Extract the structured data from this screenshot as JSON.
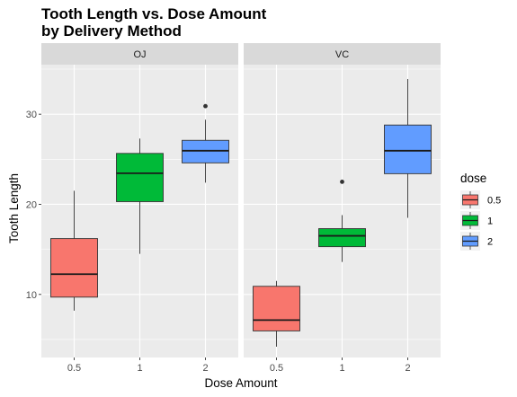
{
  "chart_data": {
    "type": "boxplot",
    "title_line1": "Tooth Length vs. Dose Amount",
    "title_line2": "by Delivery Method",
    "xlabel": "Dose Amount",
    "ylabel": "Tooth Length",
    "categories": [
      "0.5",
      "1",
      "2"
    ],
    "y_ticks": [
      10,
      20,
      30
    ],
    "ylim": [
      3,
      35.5
    ],
    "grid": true,
    "legend": {
      "title": "dose",
      "position": "right",
      "entries": [
        {
          "label": "0.5",
          "color": "#F8766D"
        },
        {
          "label": "1",
          "color": "#00BA38"
        },
        {
          "label": "2",
          "color": "#619CFF"
        }
      ]
    },
    "panels": [
      {
        "label": "OJ",
        "boxes": [
          {
            "category": "0.5",
            "min": 8.2,
            "q1": 9.7,
            "median": 12.25,
            "q3": 16.2,
            "max": 21.5,
            "outliers": []
          },
          {
            "category": "1",
            "min": 14.5,
            "q1": 20.3,
            "median": 23.45,
            "q3": 25.65,
            "max": 27.3,
            "outliers": []
          },
          {
            "category": "2",
            "min": 22.4,
            "q1": 24.6,
            "median": 25.95,
            "q3": 27.1,
            "max": 29.4,
            "outliers": [
              30.9
            ]
          }
        ]
      },
      {
        "label": "VC",
        "boxes": [
          {
            "category": "0.5",
            "min": 4.2,
            "q1": 5.95,
            "median": 7.15,
            "q3": 10.9,
            "max": 11.5,
            "outliers": []
          },
          {
            "category": "1",
            "min": 13.6,
            "q1": 15.3,
            "median": 16.5,
            "q3": 17.3,
            "max": 18.8,
            "outliers": [
              22.5
            ]
          },
          {
            "category": "2",
            "min": 18.5,
            "q1": 23.4,
            "median": 25.95,
            "q3": 28.8,
            "max": 33.9,
            "outliers": []
          }
        ]
      }
    ]
  }
}
